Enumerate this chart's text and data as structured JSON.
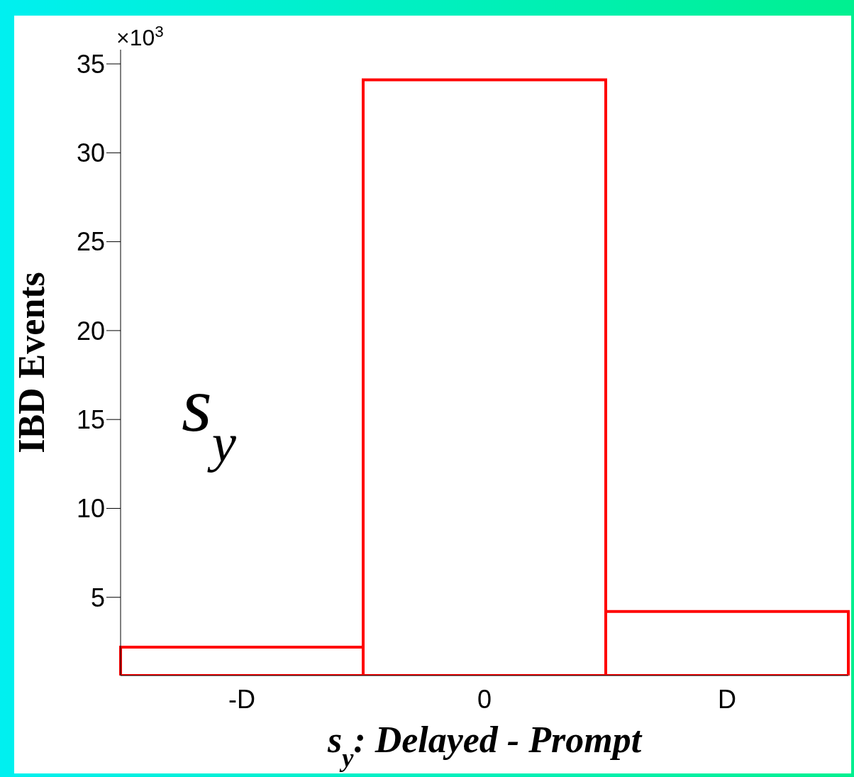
{
  "chart_data": {
    "type": "bar",
    "xlabel": "s$_{y}$: Delayed - Prompt",
    "ylabel": "IBD Events",
    "categories": [
      "-D",
      "0",
      "D"
    ],
    "values": [
      2.2,
      34.1,
      4.2
    ],
    "color": "#ff0000",
    "ylim": [
      0.6,
      35.8
    ],
    "yticks": [
      5,
      10,
      15,
      20,
      25,
      30,
      35
    ],
    "annotations": [
      "×10$^{3}$",
      "s$_{y}$"
    ]
  }
}
